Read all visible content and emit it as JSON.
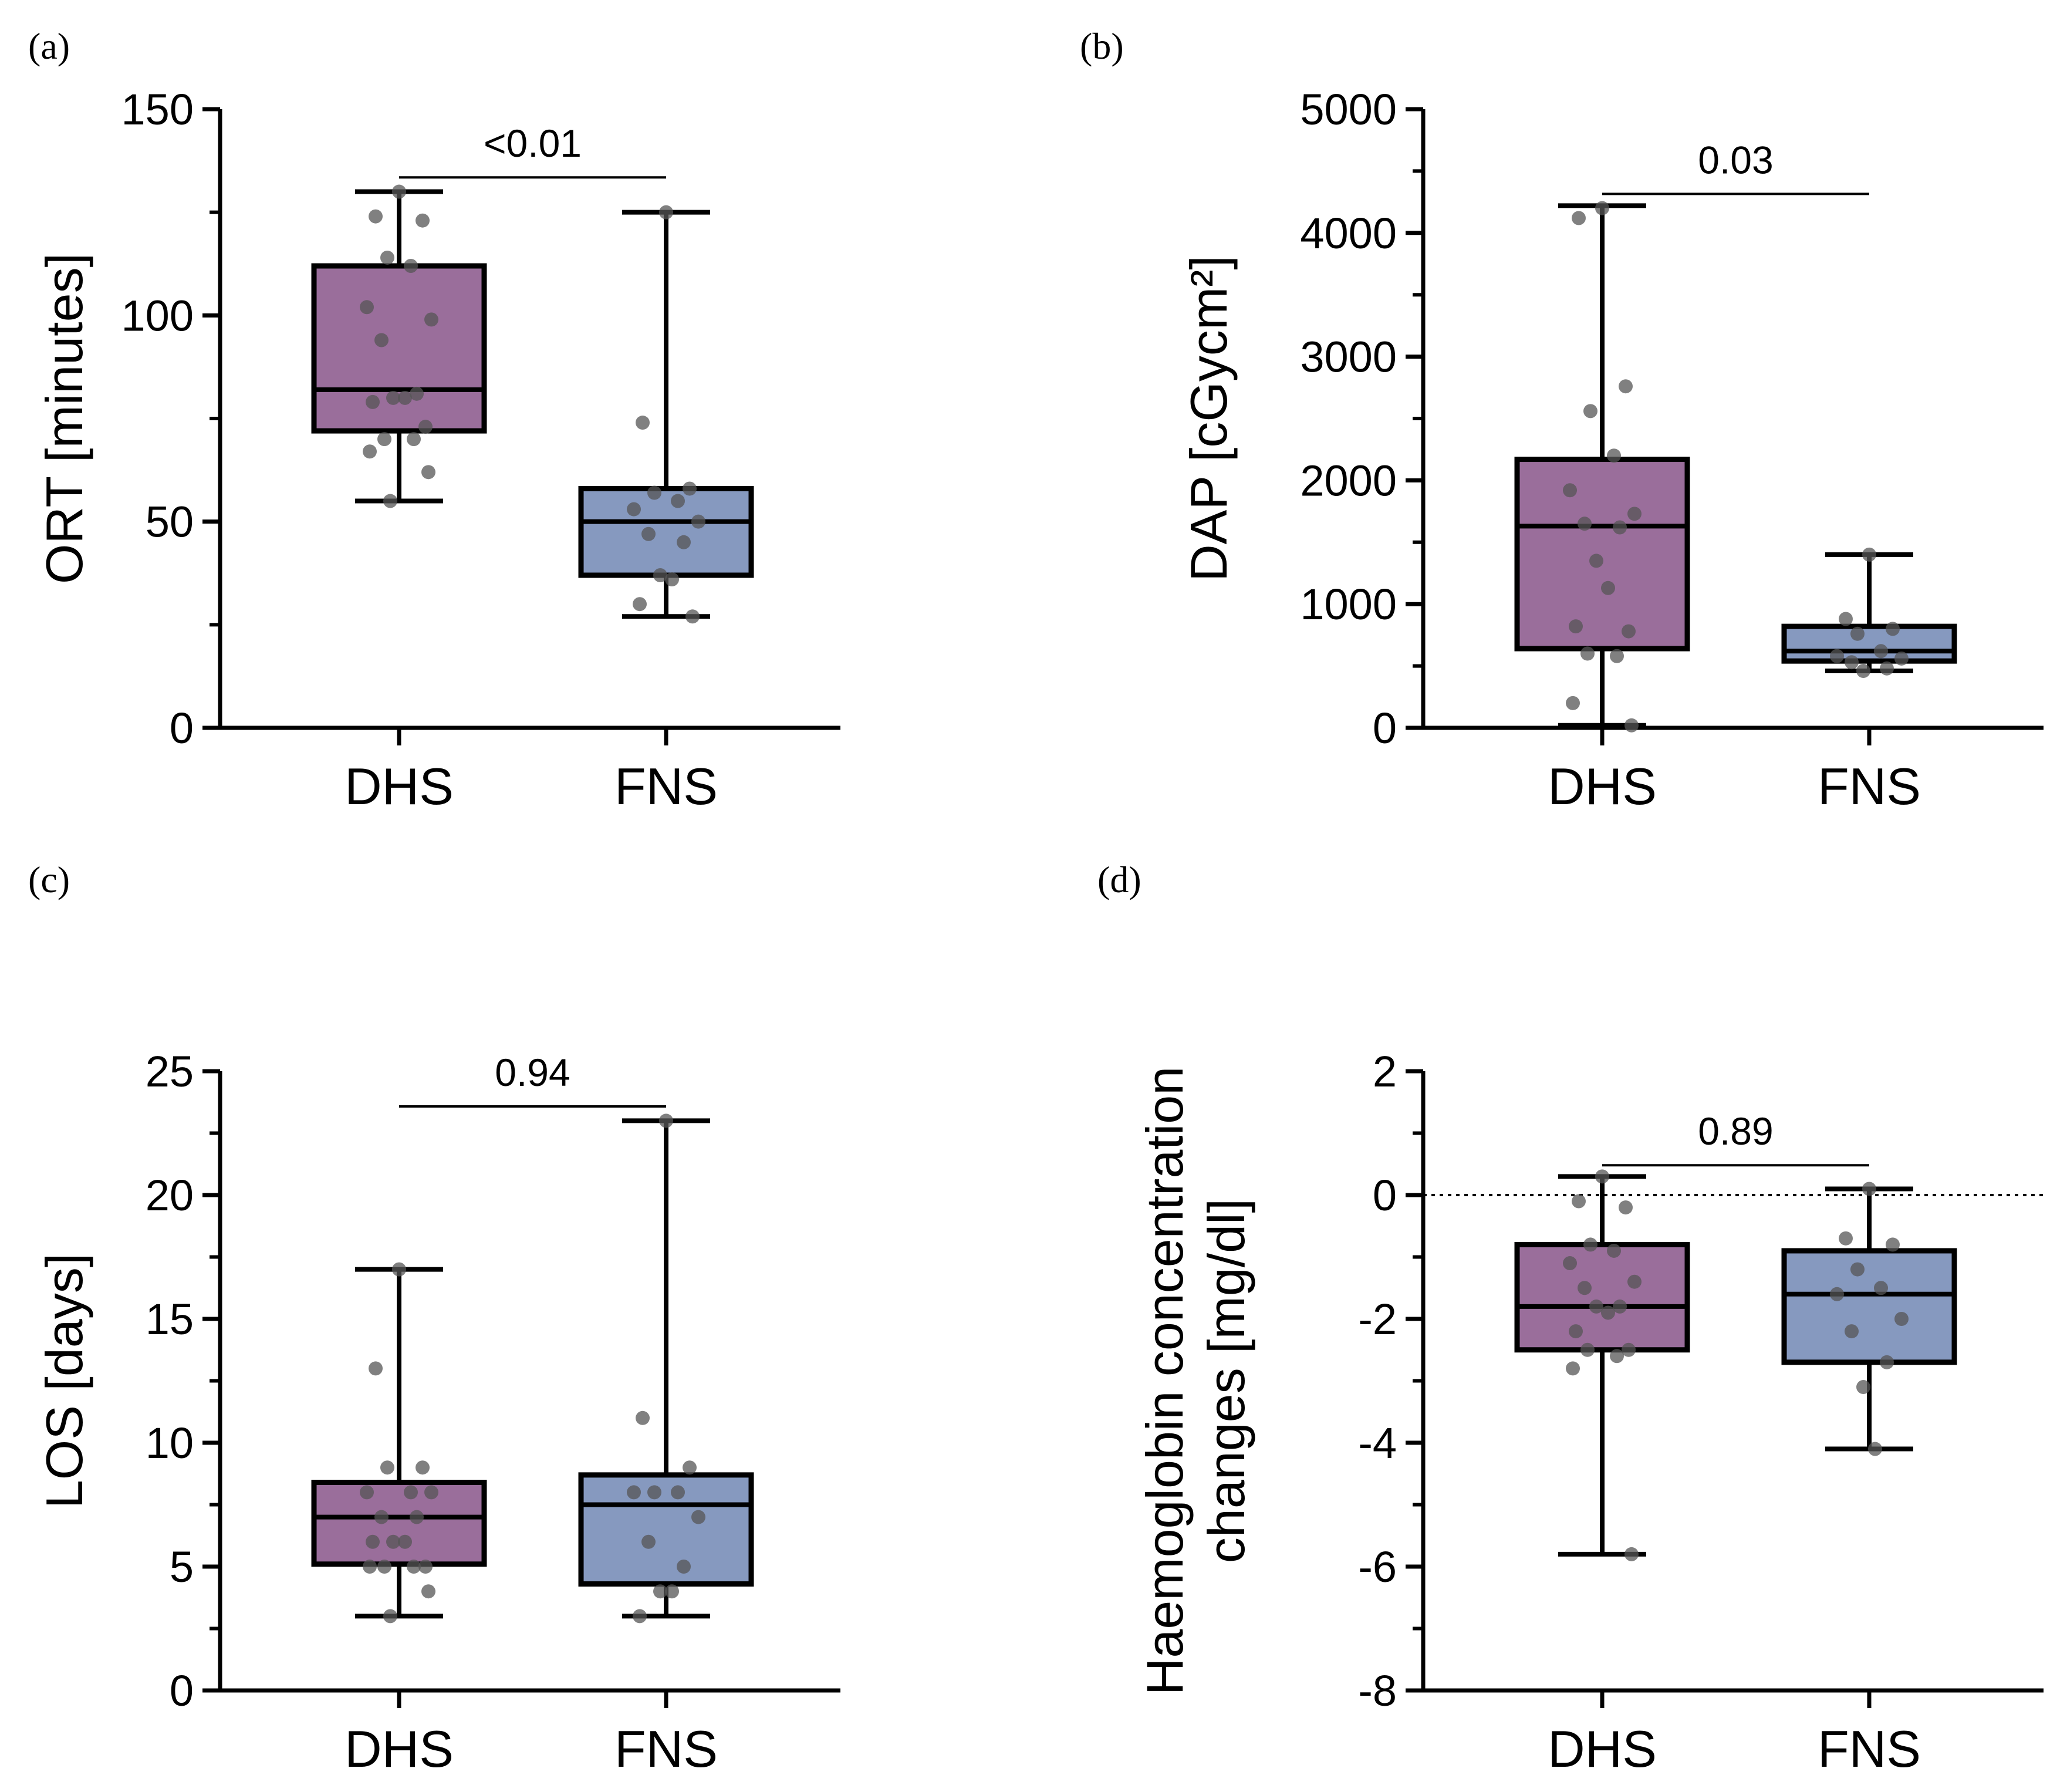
{
  "colors": {
    "dhs_fill": "#9A6E9B",
    "fns_fill": "#8699BF",
    "outline": "#000000",
    "dot": "#555555"
  },
  "chart_data": [
    {
      "panel": "a",
      "panel_label": "(a)",
      "type": "box",
      "ylabel": "ORT [minutes]",
      "ylim": [
        0,
        150
      ],
      "yticks": [
        0,
        50,
        100,
        150
      ],
      "ytick_labels": [
        "0",
        "50",
        "100",
        "150"
      ],
      "minor_per_major": 1,
      "categories": [
        "DHS",
        "FNS"
      ],
      "p_value": "<0.01",
      "p_y": 142,
      "zero_line": false,
      "series": [
        {
          "name": "DHS",
          "color": "dhs",
          "min": 55,
          "q1": 72,
          "median": 82,
          "q3": 112,
          "max": 130,
          "points": [
            130,
            124,
            123,
            114,
            112,
            102,
            99,
            94,
            81,
            80,
            80,
            79,
            73,
            70,
            70,
            67,
            62,
            55
          ]
        },
        {
          "name": "FNS",
          "color": "fns",
          "min": 27,
          "q1": 37,
          "median": 50,
          "q3": 58,
          "max": 125,
          "points": [
            125,
            74,
            58,
            57,
            55,
            53,
            50,
            47,
            45,
            37,
            36,
            30,
            27
          ]
        }
      ]
    },
    {
      "panel": "b",
      "panel_label": "(b)",
      "type": "box",
      "ylabel": "DAP [cGycm²]",
      "ylim": [
        0,
        5000
      ],
      "yticks": [
        0,
        1000,
        2000,
        3000,
        4000,
        5000
      ],
      "ytick_labels": [
        "0",
        "1000",
        "2000",
        "3000",
        "4000",
        "5000"
      ],
      "minor_per_major": 1,
      "categories": [
        "DHS",
        "FNS"
      ],
      "p_value": "0.03",
      "p_y": 4600,
      "zero_line": false,
      "series": [
        {
          "name": "DHS",
          "color": "dhs",
          "min": 20,
          "q1": 640,
          "median": 1630,
          "q3": 2170,
          "max": 4220,
          "points": [
            4200,
            4120,
            2760,
            2560,
            2200,
            1920,
            1730,
            1650,
            1620,
            1350,
            1130,
            820,
            780,
            600,
            580,
            200,
            20
          ]
        },
        {
          "name": "FNS",
          "color": "fns",
          "min": 460,
          "q1": 540,
          "median": 620,
          "q3": 820,
          "max": 1400,
          "points": [
            1400,
            880,
            800,
            760,
            620,
            580,
            560,
            530,
            480,
            460
          ]
        }
      ]
    },
    {
      "panel": "c",
      "panel_label": "(c)",
      "type": "box",
      "ylabel": "LOS [days]",
      "ylim": [
        0,
        25
      ],
      "yticks": [
        0,
        5,
        10,
        15,
        20,
        25
      ],
      "ytick_labels": [
        "0",
        "5",
        "10",
        "15",
        "20",
        "25"
      ],
      "minor_per_major": 1,
      "categories": [
        "DHS",
        "FNS"
      ],
      "p_value": "0.94",
      "p_y": 25,
      "zero_line": false,
      "series": [
        {
          "name": "DHS",
          "color": "dhs",
          "min": 3,
          "q1": 5.1,
          "median": 7,
          "q3": 8.4,
          "max": 17,
          "points": [
            17,
            13,
            9,
            9,
            8,
            8,
            8,
            7,
            7,
            6,
            6,
            6,
            5,
            5,
            5,
            5,
            4,
            3
          ]
        },
        {
          "name": "FNS",
          "color": "fns",
          "min": 3,
          "q1": 4.3,
          "median": 7.5,
          "q3": 8.7,
          "max": 23,
          "points": [
            23,
            11,
            9,
            8,
            8,
            8,
            7,
            6,
            5,
            4,
            4,
            3
          ]
        }
      ]
    },
    {
      "panel": "d",
      "panel_label": "(d)",
      "type": "box",
      "ylabel_lines": [
        "Haemoglobin concentration",
        "changes [mg/dl]"
      ],
      "ylim": [
        -8,
        2
      ],
      "yticks": [
        -8,
        -6,
        -4,
        -2,
        0,
        2
      ],
      "ytick_labels": [
        "-8",
        "-6",
        "-4",
        "-2",
        "0",
        "2"
      ],
      "minor_per_major": 1,
      "categories": [
        "DHS",
        "FNS"
      ],
      "p_value": "0.89",
      "p_y": 1.05,
      "zero_line": true,
      "series": [
        {
          "name": "DHS",
          "color": "dhs",
          "min": -5.8,
          "q1": -2.5,
          "median": -1.8,
          "q3": -0.8,
          "max": 0.3,
          "points": [
            0.3,
            -0.1,
            -0.2,
            -0.8,
            -0.9,
            -1.1,
            -1.4,
            -1.5,
            -1.8,
            -1.8,
            -1.9,
            -2.2,
            -2.5,
            -2.5,
            -2.6,
            -2.8,
            -5.8
          ]
        },
        {
          "name": "FNS",
          "color": "fns",
          "min": -4.1,
          "q1": -2.7,
          "median": -1.6,
          "q3": -0.9,
          "max": 0.1,
          "points": [
            0.1,
            -0.7,
            -0.8,
            -1.2,
            -1.5,
            -1.6,
            -2.0,
            -2.2,
            -2.7,
            -3.1,
            -4.1
          ]
        }
      ]
    }
  ]
}
